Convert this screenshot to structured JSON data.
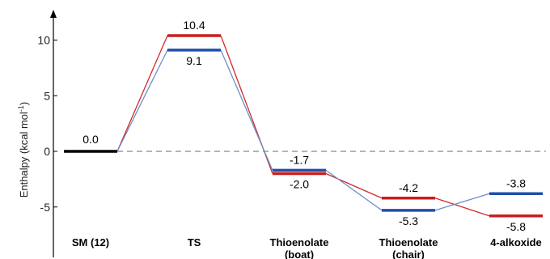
{
  "chart_data": {
    "type": "line",
    "ylabel_main": "Enthalpy (kcal mol",
    "ylabel_sup": "-1",
    "ylabel_close": ")",
    "ylim": [
      -9.5,
      13
    ],
    "yticks": [
      10,
      5,
      0,
      -5
    ],
    "ytick_labels": [
      "10",
      "5",
      "0",
      "-5"
    ],
    "grid": false,
    "categories": [
      {
        "lines": [
          "SM (12)"
        ]
      },
      {
        "lines": [
          "TS"
        ]
      },
      {
        "lines": [
          "Thioenolate",
          "(boat)"
        ]
      },
      {
        "lines": [
          "Thioenolate",
          "(chair)"
        ]
      },
      {
        "lines": [
          "4-alkoxide"
        ]
      }
    ],
    "series": [
      {
        "color": "#d02a2a",
        "bar_color": "#c81e1e",
        "points": [
          {
            "category_index": 0,
            "value": 0.0,
            "label": ""
          },
          {
            "category_index": 1,
            "value": 10.4,
            "label": "10.4"
          },
          {
            "category_index": 2,
            "value": -2.0,
            "label": "-2.0"
          },
          {
            "category_index": 3,
            "value": -4.2,
            "label": "-4.2"
          },
          {
            "category_index": 4,
            "value": -5.8,
            "label": "-5.8"
          }
        ]
      },
      {
        "color": "#6b8fc9",
        "bar_color": "#1f4fa8",
        "points": [
          {
            "category_index": 0,
            "value": 0.0,
            "label": ""
          },
          {
            "category_index": 1,
            "value": 9.1,
            "label": "9.1"
          },
          {
            "category_index": 2,
            "value": -1.7,
            "label": "-1.7"
          },
          {
            "category_index": 3,
            "value": -5.3,
            "label": "-5.3"
          },
          {
            "category_index": 4,
            "value": -3.8,
            "label": "-3.8"
          }
        ]
      }
    ],
    "shared_level": {
      "category_index": 0,
      "value": 0.0,
      "label": "0.0",
      "color": "#000000"
    },
    "reference_line": {
      "value": 0,
      "style": "dashed",
      "color": "#888888"
    }
  }
}
